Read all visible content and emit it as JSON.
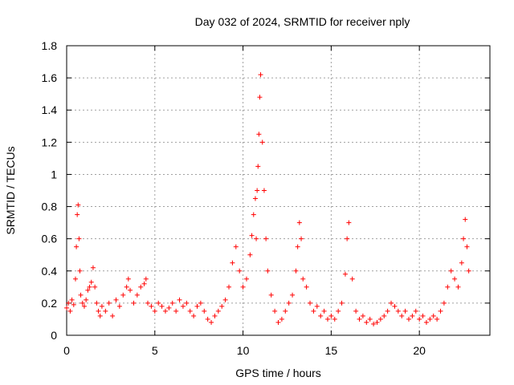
{
  "chart_data": {
    "type": "scatter",
    "title": "Day 032 of 2024, SRMTID for receiver nply",
    "xlabel": "GPS time / hours",
    "ylabel": "SRMTID / TECUs",
    "xlim": [
      0,
      24
    ],
    "ylim": [
      0,
      1.8
    ],
    "x_ticks": [
      0,
      5,
      10,
      15,
      20
    ],
    "x_tick_labels": [
      "0",
      "5",
      "10",
      "15",
      "20"
    ],
    "y_ticks": [
      0,
      0.2,
      0.4,
      0.6,
      0.8,
      1.0,
      1.2,
      1.4,
      1.6,
      1.8
    ],
    "y_tick_labels": [
      "0",
      "0.2",
      "0.4",
      "0.6",
      "0.8",
      "1",
      "1.2",
      "1.4",
      "1.6",
      "1.8"
    ],
    "grid": true,
    "marker": "+",
    "series": [
      {
        "name": "nply",
        "color": "#ff0000",
        "x": [
          0.0,
          0.1,
          0.2,
          0.3,
          0.4,
          0.5,
          0.55,
          0.6,
          0.65,
          0.7,
          0.75,
          0.8,
          0.9,
          1.0,
          1.1,
          1.2,
          1.3,
          1.4,
          1.5,
          1.6,
          1.7,
          1.8,
          1.9,
          2.0,
          2.2,
          2.4,
          2.6,
          2.8,
          3.0,
          3.2,
          3.4,
          3.5,
          3.6,
          3.8,
          4.0,
          4.2,
          4.4,
          4.5,
          4.6,
          4.8,
          5.0,
          5.2,
          5.4,
          5.6,
          5.8,
          6.0,
          6.2,
          6.4,
          6.6,
          6.8,
          7.0,
          7.2,
          7.4,
          7.6,
          7.8,
          8.0,
          8.2,
          8.4,
          8.6,
          8.8,
          9.0,
          9.2,
          9.4,
          9.6,
          9.8,
          10.0,
          10.2,
          10.4,
          10.5,
          10.6,
          10.7,
          10.75,
          10.8,
          10.85,
          10.9,
          10.95,
          11.0,
          11.1,
          11.2,
          11.3,
          11.4,
          11.6,
          11.8,
          12.0,
          12.2,
          12.4,
          12.6,
          12.8,
          13.0,
          13.1,
          13.2,
          13.3,
          13.4,
          13.6,
          13.8,
          14.0,
          14.2,
          14.4,
          14.6,
          14.8,
          15.0,
          15.2,
          15.4,
          15.6,
          15.8,
          15.9,
          16.0,
          16.2,
          16.4,
          16.6,
          16.8,
          17.0,
          17.2,
          17.4,
          17.6,
          17.8,
          18.0,
          18.2,
          18.4,
          18.6,
          18.8,
          19.0,
          19.2,
          19.4,
          19.6,
          19.8,
          20.0,
          20.2,
          20.4,
          20.6,
          20.8,
          21.0,
          21.2,
          21.4,
          21.6,
          21.8,
          22.0,
          22.2,
          22.4,
          22.5,
          22.6,
          22.7,
          22.8
        ],
        "y": [
          0.17,
          0.2,
          0.15,
          0.22,
          0.19,
          0.35,
          0.55,
          0.75,
          0.81,
          0.6,
          0.4,
          0.25,
          0.2,
          0.18,
          0.22,
          0.28,
          0.3,
          0.33,
          0.42,
          0.3,
          0.2,
          0.15,
          0.12,
          0.18,
          0.15,
          0.2,
          0.12,
          0.22,
          0.18,
          0.25,
          0.3,
          0.35,
          0.28,
          0.2,
          0.25,
          0.3,
          0.32,
          0.35,
          0.2,
          0.18,
          0.15,
          0.2,
          0.18,
          0.15,
          0.17,
          0.2,
          0.15,
          0.22,
          0.18,
          0.2,
          0.15,
          0.12,
          0.18,
          0.2,
          0.15,
          0.1,
          0.08,
          0.12,
          0.15,
          0.18,
          0.22,
          0.3,
          0.45,
          0.55,
          0.4,
          0.3,
          0.35,
          0.5,
          0.62,
          0.75,
          0.85,
          0.6,
          0.9,
          1.05,
          1.25,
          1.48,
          1.62,
          1.2,
          0.9,
          0.6,
          0.4,
          0.25,
          0.15,
          0.08,
          0.1,
          0.15,
          0.2,
          0.25,
          0.4,
          0.55,
          0.7,
          0.6,
          0.35,
          0.3,
          0.2,
          0.15,
          0.18,
          0.12,
          0.15,
          0.1,
          0.12,
          0.1,
          0.15,
          0.2,
          0.38,
          0.6,
          0.7,
          0.35,
          0.15,
          0.1,
          0.12,
          0.08,
          0.1,
          0.07,
          0.08,
          0.1,
          0.12,
          0.15,
          0.2,
          0.18,
          0.15,
          0.12,
          0.15,
          0.1,
          0.12,
          0.15,
          0.1,
          0.12,
          0.08,
          0.1,
          0.12,
          0.1,
          0.15,
          0.2,
          0.3,
          0.4,
          0.35,
          0.3,
          0.45,
          0.6,
          0.72,
          0.55,
          0.4
        ]
      }
    ]
  }
}
